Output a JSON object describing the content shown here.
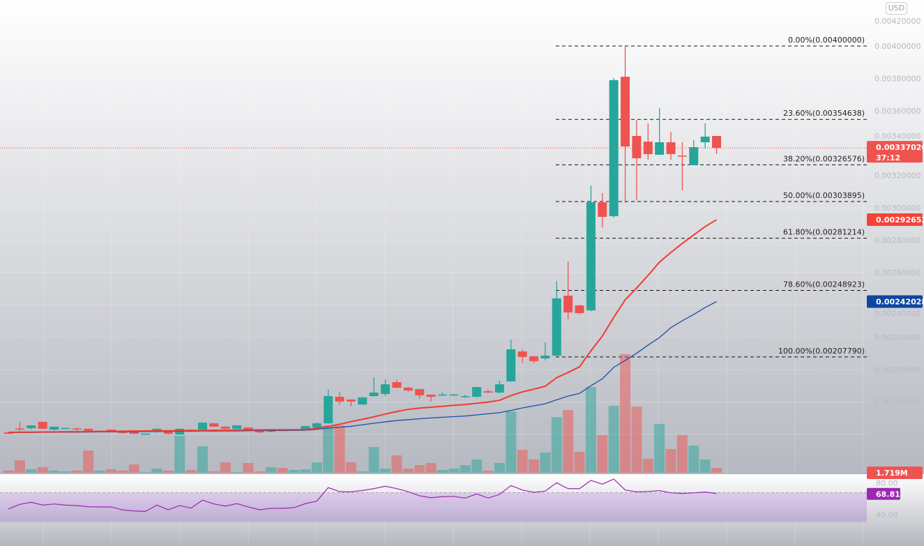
{
  "currency_badge": "USD",
  "colors": {
    "up": "#26a69a",
    "down": "#ef5350",
    "ma_fast": "#f23b2f",
    "ma_slow": "#1c4fa6",
    "rsi": "#9c27b0",
    "rsi_band": "#d6c6e6"
  },
  "chart_data": {
    "type": "candlestick",
    "price_axis": {
      "ticks": [
        "0.00420000",
        "0.00400000",
        "0.00380000",
        "0.00360000",
        "0.00340000",
        "0.00320000",
        "0.00300000",
        "0.00280000",
        "0.00260000",
        "0.00240000",
        "0.00220000",
        "0.00200000",
        "0.00180000",
        "0.00160000"
      ],
      "range": [
        0.0014,
        0.0042
      ]
    },
    "ohlc": [
      [
        0.001612,
        0.001614,
        0.0016,
        0.001603
      ],
      [
        0.001636,
        0.001677,
        0.001621,
        0.001634
      ],
      [
        0.001638,
        0.001656,
        0.00163,
        0.001655
      ],
      [
        0.001677,
        0.001677,
        0.001634,
        0.001634
      ],
      [
        0.001629,
        0.001647,
        0.00162,
        0.001647
      ],
      [
        0.001637,
        0.001641,
        0.001636,
        0.001639
      ],
      [
        0.001636,
        0.001642,
        0.00162,
        0.001632
      ],
      [
        0.001634,
        0.001636,
        0.001619,
        0.001621
      ],
      [
        0.00162,
        0.001623,
        0.001619,
        0.001622
      ],
      [
        0.001629,
        0.001631,
        0.001619,
        0.001621
      ],
      [
        0.001621,
        0.001622,
        0.001604,
        0.001608
      ],
      [
        0.001616,
        0.001618,
        0.001598,
        0.001603
      ],
      [
        0.001602,
        0.001605,
        0.001601,
        0.001604
      ],
      [
        0.001616,
        0.001636,
        0.00161,
        0.001634
      ],
      [
        0.001616,
        0.001618,
        0.001598,
        0.001603
      ],
      [
        0.001599,
        0.001636,
        0.001596,
        0.001634
      ],
      [
        0.001629,
        0.00163,
        0.001614,
        0.001616
      ],
      [
        0.001629,
        0.001674,
        0.00162,
        0.001672
      ],
      [
        0.001668,
        0.001668,
        0.001647,
        0.001647
      ],
      [
        0.001647,
        0.001648,
        0.00163,
        0.001634
      ],
      [
        0.001634,
        0.001656,
        0.001634,
        0.001655
      ],
      [
        0.001642,
        0.001643,
        0.001628,
        0.001629
      ],
      [
        0.001625,
        0.001626,
        0.001607,
        0.001612
      ],
      [
        0.001616,
        0.001627,
        0.001612,
        0.001625
      ],
      [
        0.001626,
        0.001627,
        0.001623,
        0.001624
      ],
      [
        0.001625,
        0.001631,
        0.001624,
        0.001629
      ],
      [
        0.001625,
        0.001652,
        0.001623,
        0.001651
      ],
      [
        0.001642,
        0.001675,
        0.00164,
        0.001668
      ],
      [
        0.001668,
        0.001875,
        0.001665,
        0.001836
      ],
      [
        0.001832,
        0.001862,
        0.001784,
        0.001802
      ],
      [
        0.001815,
        0.001816,
        0.001772,
        0.001802
      ],
      [
        0.001784,
        0.00183,
        0.001782,
        0.001828
      ],
      [
        0.001836,
        0.001953,
        0.001834,
        0.001858
      ],
      [
        0.001849,
        0.00194,
        0.001836,
        0.001909
      ],
      [
        0.001922,
        0.00194,
        0.001884,
        0.001888
      ],
      [
        0.001888,
        0.001893,
        0.001862,
        0.001871
      ],
      [
        0.001879,
        0.001881,
        0.001819,
        0.001841
      ],
      [
        0.001845,
        0.001846,
        0.001802,
        0.001832
      ],
      [
        0.001844,
        0.00186,
        0.001838,
        0.001846
      ],
      [
        0.001844,
        0.00185,
        0.001838,
        0.001846
      ],
      [
        0.001834,
        0.001845,
        0.001825,
        0.001836
      ],
      [
        0.001832,
        0.001894,
        0.001828,
        0.001892
      ],
      [
        0.001866,
        0.001875,
        0.001855,
        0.001858
      ],
      [
        0.001858,
        0.001931,
        0.001854,
        0.001909
      ],
      [
        0.001927,
        0.002185,
        0.001925,
        0.002125
      ],
      [
        0.002112,
        0.002125,
        0.002039,
        0.002078
      ],
      [
        0.002082,
        0.002085,
        0.002039,
        0.002052
      ],
      [
        0.002069,
        0.002168,
        0.002056,
        0.002086
      ],
      [
        0.002086,
        0.002547,
        0.00208,
        0.00244
      ],
      [
        0.002457,
        0.002668,
        0.00231,
        0.002353
      ],
      [
        0.002397,
        0.0024,
        0.002341,
        0.002349
      ],
      [
        0.002366,
        0.003138,
        0.00236,
        0.003034
      ],
      [
        0.003034,
        0.003091,
        0.002879,
        0.002944
      ],
      [
        0.002948,
        0.003802,
        0.00294,
        0.003789
      ],
      [
        0.00381,
        0.004,
        0.00303,
        0.003379
      ],
      [
        0.003444,
        0.003543,
        0.003047,
        0.003306
      ],
      [
        0.003409,
        0.003522,
        0.003297,
        0.003332
      ],
      [
        0.003328,
        0.003616,
        0.003328,
        0.003405
      ],
      [
        0.003405,
        0.00347,
        0.003297,
        0.003332
      ],
      [
        0.003323,
        0.003405,
        0.003108,
        0.003319
      ],
      [
        0.003263,
        0.003418,
        0.003263,
        0.003375
      ],
      [
        0.003405,
        0.003522,
        0.003366,
        0.00344
      ],
      [
        0.003444,
        0.003444,
        0.003332,
        0.00337
      ]
    ],
    "volume_millions": [
      0.74,
      4.42,
      1.23,
      1.96,
      0.74,
      0.49,
      0.74,
      7.86,
      0.74,
      1.23,
      0.74,
      2.95,
      0.25,
      1.47,
      0.74,
      13.0,
      0.98,
      9.33,
      0.49,
      3.68,
      0.25,
      3.44,
      0.49,
      1.96,
      1.72,
      0.98,
      1.23,
      3.68,
      16.7,
      16.7,
      3.68,
      0.49,
      9.09,
      1.47,
      6.14,
      1.47,
      2.7,
      3.44,
      0.98,
      1.47,
      2.7,
      4.67,
      0.74,
      3.44,
      21.6,
      8.1,
      4.67,
      7.12,
      19.6,
      22.1,
      7.37,
      30.2,
      13.3,
      23.6,
      41.8,
      23.3,
      4.91,
      17.2,
      8.35,
      13.3,
      9.58,
      4.67,
      1.719
    ],
    "ma_fast": [
      0.001612,
      0.001613,
      0.001613,
      0.001614,
      0.001615,
      0.001616,
      0.001616,
      0.001617,
      0.001618,
      0.001618,
      0.001619,
      0.00162,
      0.001621,
      0.001621,
      0.001622,
      0.001623,
      0.001623,
      0.001624,
      0.001625,
      0.001625,
      0.001626,
      0.001627,
      0.001627,
      0.001628,
      0.001628,
      0.001629,
      0.001629,
      0.001638,
      0.001648,
      0.001662,
      0.001678,
      0.001693,
      0.001708,
      0.001725,
      0.001741,
      0.001754,
      0.001762,
      0.001767,
      0.001773,
      0.001779,
      0.001784,
      0.001792,
      0.001799,
      0.00181,
      0.001839,
      0.001862,
      0.001879,
      0.001897,
      0.00195,
      0.001982,
      0.002017,
      0.002116,
      0.002207,
      0.002323,
      0.002431,
      0.002504,
      0.002582,
      0.002664,
      0.002724,
      0.00278,
      0.002832,
      0.002884,
      0.00292653
    ],
    "ma_slow": [
      0.00161,
      0.001611,
      0.001611,
      0.001612,
      0.001612,
      0.001613,
      0.001613,
      0.001614,
      0.001615,
      0.001615,
      0.001616,
      0.001616,
      0.001617,
      0.001617,
      0.001618,
      0.001619,
      0.001619,
      0.00162,
      0.00162,
      0.001621,
      0.001621,
      0.001622,
      0.001623,
      0.001623,
      0.001624,
      0.001624,
      0.001625,
      0.001631,
      0.001638,
      0.001644,
      0.001649,
      0.001659,
      0.001668,
      0.001677,
      0.001685,
      0.00169,
      0.001696,
      0.001701,
      0.001705,
      0.001709,
      0.001713,
      0.00172,
      0.001727,
      0.001734,
      0.001748,
      0.001763,
      0.001776,
      0.001789,
      0.001813,
      0.001836,
      0.001853,
      0.0019,
      0.001943,
      0.002014,
      0.002057,
      0.002101,
      0.002151,
      0.002198,
      0.002259,
      0.002302,
      0.002341,
      0.002384,
      0.00242028
    ],
    "rsi": [
      47.6,
      54.0,
      56.9,
      53.0,
      54.6,
      53.0,
      52.4,
      50.8,
      50.5,
      50.5,
      46.4,
      45.0,
      44.4,
      53.0,
      46.7,
      52.4,
      48.9,
      59.7,
      54.6,
      51.7,
      55.0,
      50.5,
      46.7,
      48.6,
      48.6,
      49.5,
      55.0,
      58.4,
      76.9,
      71.4,
      71.1,
      73.0,
      75.5,
      78.8,
      75.5,
      71.4,
      65.7,
      63.1,
      64.5,
      64.8,
      62.6,
      68.3,
      62.6,
      67.6,
      79.7,
      73.6,
      70.5,
      72.1,
      83.5,
      75.5,
      75.5,
      86.7,
      81.6,
      88.6,
      73.6,
      71.1,
      71.7,
      72.7,
      69.8,
      68.9,
      69.8,
      70.8,
      68.81
    ],
    "rsi_axis": {
      "ticks": [
        "80.00",
        "40.00"
      ],
      "band": [
        30,
        70
      ]
    },
    "fib_levels": [
      {
        "label": "0.00%(0.00400000)",
        "price": 0.004
      },
      {
        "label": "23.60%(0.00354638)",
        "price": 0.00354638
      },
      {
        "label": "38.20%(0.00326576)",
        "price": 0.00326576
      },
      {
        "label": "50.00%(0.00303895)",
        "price": 0.00303895
      },
      {
        "label": "61.80%(0.00281214)",
        "price": 0.00281214
      },
      {
        "label": "78.60%(0.00248923)",
        "price": 0.00248923
      },
      {
        "label": "100.00%(0.00207790)",
        "price": 0.0020779
      }
    ],
    "tags": {
      "last_price": "0.00337020",
      "last_price_value": 0.0033702,
      "countdown": "37:12",
      "ma_fast": "0.00292653",
      "ma_slow": "0.00242028",
      "volume": "1.719M",
      "rsi": "68.81"
    }
  }
}
